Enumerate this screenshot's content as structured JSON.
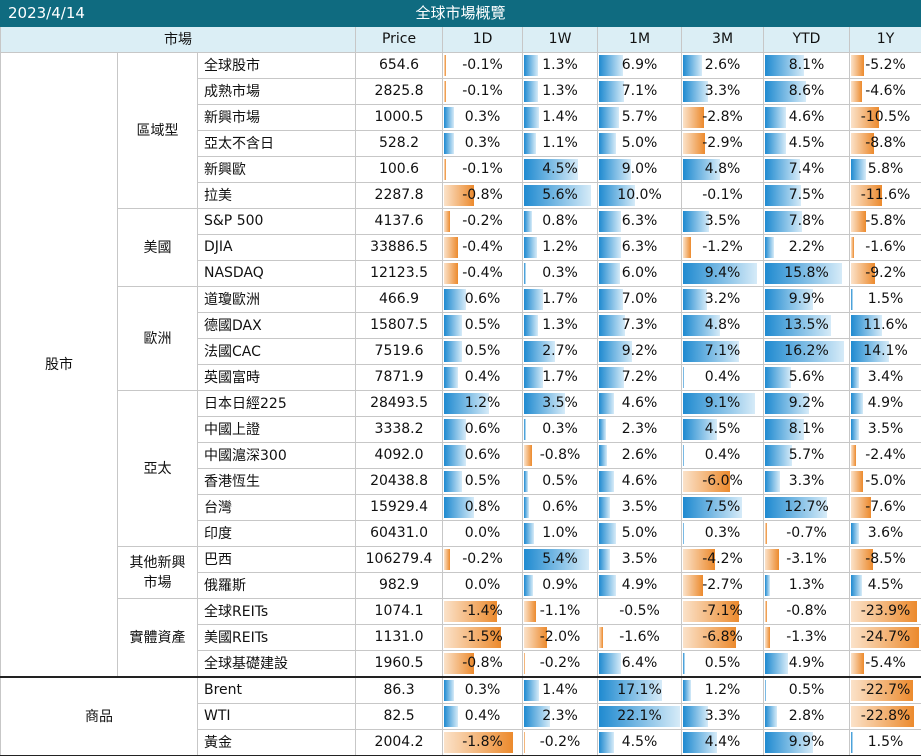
{
  "header": {
    "date": "2023/4/14",
    "title": "全球市場概覽"
  },
  "columns": [
    "市場",
    "Price",
    "1D",
    "1W",
    "1M",
    "3M",
    "YTD",
    "1Y"
  ],
  "scale": {
    "1D": 2,
    "1W": 6,
    "1M": 22,
    "3M": 10,
    "YTD": 17,
    "1Y": 25
  },
  "sections": [
    {
      "name": "股市",
      "groups": [
        {
          "name": "區域型",
          "rows": [
            {
              "name": "全球股市",
              "price": "654.6",
              "v": [
                "-0.1%",
                "1.3%",
                "6.9%",
                "2.6%",
                "8.1%",
                "-5.2%"
              ]
            },
            {
              "name": "成熟市場",
              "price": "2825.8",
              "v": [
                "-0.1%",
                "1.3%",
                "7.1%",
                "3.3%",
                "8.6%",
                "-4.6%"
              ]
            },
            {
              "name": "新興市場",
              "price": "1000.5",
              "v": [
                "0.3%",
                "1.4%",
                "5.7%",
                "-2.8%",
                "4.6%",
                "-10.5%"
              ]
            },
            {
              "name": "亞太不含日",
              "price": "528.2",
              "v": [
                "0.3%",
                "1.1%",
                "5.0%",
                "-2.9%",
                "4.5%",
                "-8.8%"
              ]
            },
            {
              "name": "新興歐",
              "price": "100.6",
              "v": [
                "-0.1%",
                "4.5%",
                "9.0%",
                "4.8%",
                "7.4%",
                "5.8%"
              ]
            },
            {
              "name": "拉美",
              "price": "2287.8",
              "v": [
                "-0.8%",
                "5.6%",
                "10.0%",
                "-0.1%",
                "7.5%",
                "-11.6%"
              ]
            }
          ]
        },
        {
          "name": "美國",
          "rows": [
            {
              "name": "S&P 500",
              "price": "4137.6",
              "v": [
                "-0.2%",
                "0.8%",
                "6.3%",
                "3.5%",
                "7.8%",
                "-5.8%"
              ]
            },
            {
              "name": "DJIA",
              "price": "33886.5",
              "v": [
                "-0.4%",
                "1.2%",
                "6.3%",
                "-1.2%",
                "2.2%",
                "-1.6%"
              ]
            },
            {
              "name": "NASDAQ",
              "price": "12123.5",
              "v": [
                "-0.4%",
                "0.3%",
                "6.0%",
                "9.4%",
                "15.8%",
                "-9.2%"
              ]
            }
          ]
        },
        {
          "name": "歐洲",
          "rows": [
            {
              "name": "道瓊歐洲",
              "price": "466.9",
              "v": [
                "0.6%",
                "1.7%",
                "7.0%",
                "3.2%",
                "9.9%",
                "1.5%"
              ]
            },
            {
              "name": "德國DAX",
              "price": "15807.5",
              "v": [
                "0.5%",
                "1.3%",
                "7.3%",
                "4.8%",
                "13.5%",
                "11.6%"
              ]
            },
            {
              "name": "法國CAC",
              "price": "7519.6",
              "v": [
                "0.5%",
                "2.7%",
                "9.2%",
                "7.1%",
                "16.2%",
                "14.1%"
              ]
            },
            {
              "name": "英國富時",
              "price": "7871.9",
              "v": [
                "0.4%",
                "1.7%",
                "7.2%",
                "0.4%",
                "5.6%",
                "3.4%"
              ]
            }
          ]
        },
        {
          "name": "亞太",
          "rows": [
            {
              "name": "日本日經225",
              "price": "28493.5",
              "v": [
                "1.2%",
                "3.5%",
                "4.6%",
                "9.1%",
                "9.2%",
                "4.9%"
              ]
            },
            {
              "name": "中國上證",
              "price": "3338.2",
              "v": [
                "0.6%",
                "0.3%",
                "2.3%",
                "4.5%",
                "8.1%",
                "3.5%"
              ]
            },
            {
              "name": "中國滬深300",
              "price": "4092.0",
              "v": [
                "0.6%",
                "-0.8%",
                "2.6%",
                "0.4%",
                "5.7%",
                "-2.4%"
              ]
            },
            {
              "name": "香港恆生",
              "price": "20438.8",
              "v": [
                "0.5%",
                "0.5%",
                "4.6%",
                "-6.0%",
                "3.3%",
                "-5.0%"
              ]
            },
            {
              "name": "台灣",
              "price": "15929.4",
              "v": [
                "0.8%",
                "0.6%",
                "3.5%",
                "7.5%",
                "12.7%",
                "-7.6%"
              ]
            },
            {
              "name": "印度",
              "price": "60431.0",
              "v": [
                "0.0%",
                "1.0%",
                "5.0%",
                "0.3%",
                "-0.7%",
                "3.6%"
              ]
            }
          ]
        },
        {
          "name": "其他新興市場",
          "name_lines": [
            "其他新興",
            "市場"
          ],
          "rows": [
            {
              "name": "巴西",
              "price": "106279.4",
              "v": [
                "-0.2%",
                "5.4%",
                "3.5%",
                "-4.2%",
                "-3.1%",
                "-8.5%"
              ]
            },
            {
              "name": "俄羅斯",
              "price": "982.9",
              "v": [
                "0.0%",
                "0.9%",
                "4.9%",
                "-2.7%",
                "1.3%",
                "4.5%"
              ]
            }
          ]
        },
        {
          "name": "實體資產",
          "rows": [
            {
              "name": "全球REITs",
              "price": "1074.1",
              "v": [
                "-1.4%",
                "-1.1%",
                "-0.5%",
                "-7.1%",
                "-0.8%",
                "-23.9%"
              ]
            },
            {
              "name": "美國REITs",
              "price": "1131.0",
              "v": [
                "-1.5%",
                "-2.0%",
                "-1.6%",
                "-6.8%",
                "-1.3%",
                "-24.7%"
              ]
            },
            {
              "name": "全球基礎建設",
              "price": "1960.5",
              "v": [
                "-0.8%",
                "-0.2%",
                "6.4%",
                "0.5%",
                "4.9%",
                "-5.4%"
              ]
            }
          ]
        }
      ]
    },
    {
      "name": "商品",
      "groups": [
        {
          "name": "",
          "rows": [
            {
              "name": "Brent",
              "price": "86.3",
              "v": [
                "0.3%",
                "1.4%",
                "17.1%",
                "1.2%",
                "0.5%",
                "-22.7%"
              ]
            },
            {
              "name": "WTI",
              "price": "82.5",
              "v": [
                "0.4%",
                "2.3%",
                "22.1%",
                "3.3%",
                "2.8%",
                "-22.8%"
              ]
            },
            {
              "name": "黃金",
              "price": "2004.2",
              "v": [
                "-1.8%",
                "-0.2%",
                "4.5%",
                "4.4%",
                "9.9%",
                "1.5%"
              ]
            }
          ]
        }
      ]
    }
  ]
}
